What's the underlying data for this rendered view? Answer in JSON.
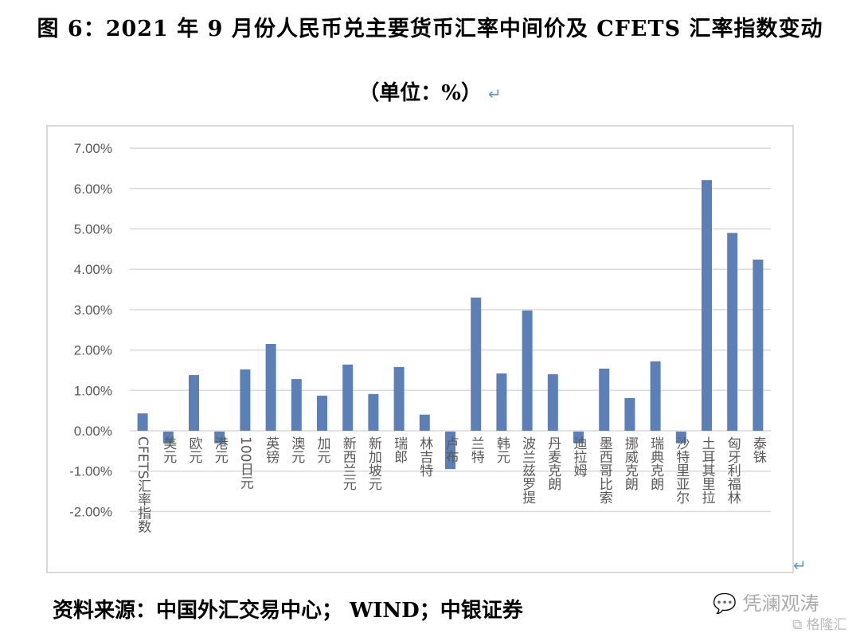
{
  "header": {
    "title": "图 6：2021 年 9 月份人民币兑主要货币汇率中间价及 CFETS 汇率指数变动",
    "subtitle": "（单位：%）",
    "return_mark": "↵"
  },
  "footer": {
    "source": "资料来源：中国外汇交易中心；  WIND；中银证券",
    "watermark_wechat": "凭澜观涛",
    "watermark_site": "格隆汇"
  },
  "style": {
    "bar_color": "#5b80b8",
    "grid_color": "#d9d9d9",
    "tick_color": "#595959"
  },
  "chart_data": {
    "type": "bar",
    "title": "图 6：2021 年 9 月份人民币兑主要货币汇率中间价及 CFETS 汇率指数变动",
    "subtitle": "（单位：%）",
    "xlabel": "",
    "ylabel": "",
    "ylim": [
      -2,
      7
    ],
    "yticks": [
      "7.00%",
      "6.00%",
      "5.00%",
      "4.00%",
      "3.00%",
      "2.00%",
      "1.00%",
      "0.00%",
      "-1.00%",
      "-2.00%"
    ],
    "grid": true,
    "legend": null,
    "categories": [
      "CFETS汇率指数",
      "美元",
      "欧元",
      "港元",
      "100日元",
      "英镑",
      "澳元",
      "加元",
      "新西兰元",
      "新加坡元",
      "瑞郎",
      "林吉特",
      "卢布",
      "兰特",
      "韩元",
      "波兰兹罗提",
      "丹麦克朗",
      "迪拉姆",
      "墨西哥比索",
      "挪威克朗",
      "瑞典克朗",
      "沙特里亚尔",
      "土耳其里拉",
      "匈牙利福林",
      "泰铢"
    ],
    "values": [
      0.43,
      -0.29,
      1.38,
      -0.29,
      1.52,
      2.15,
      1.28,
      0.87,
      1.64,
      0.91,
      1.58,
      0.4,
      -0.93,
      3.3,
      1.42,
      2.98,
      1.4,
      -0.29,
      1.54,
      0.81,
      1.72,
      -0.29,
      6.21,
      4.9,
      4.24
    ]
  }
}
